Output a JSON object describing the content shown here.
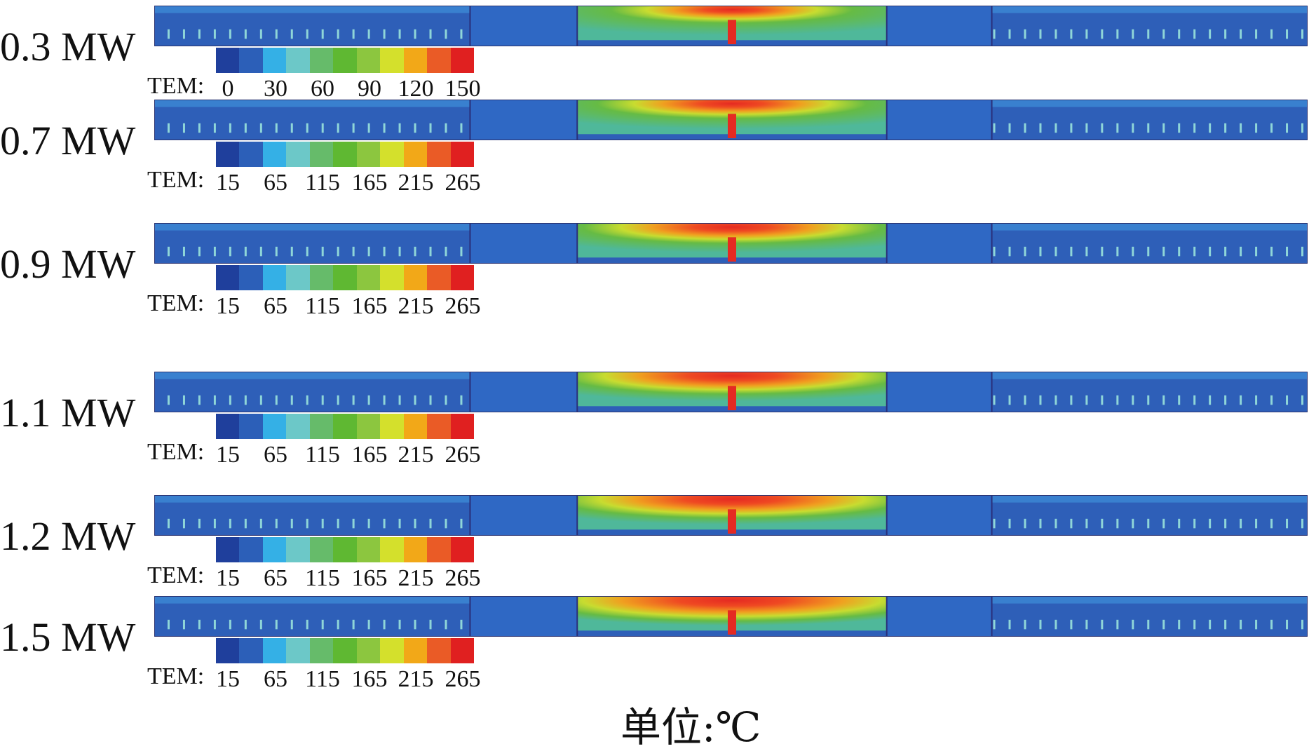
{
  "colors": {
    "scale": [
      "#1f3f9c",
      "#2c5fb8",
      "#34b0e6",
      "#6cc8c8",
      "#66bb6a",
      "#5fb832",
      "#8cc63f",
      "#d4e02c",
      "#f2a818",
      "#ea5b26",
      "#e02020"
    ],
    "background": "#2e5fb8",
    "hot": "#e52a22"
  },
  "unit_label": "单位:℃",
  "panels": [
    {
      "power": "0.3 MW",
      "tem_label": "TEM:",
      "ticks": [
        "0",
        "30",
        "60",
        "90",
        "120",
        "150"
      ],
      "fire_extent": 0.45
    },
    {
      "power": "0.7 MW",
      "tem_label": "TEM:",
      "ticks": [
        "15",
        "65",
        "115",
        "165",
        "215",
        "265"
      ],
      "fire_extent": 0.55
    },
    {
      "power": "0.9 MW",
      "tem_label": "TEM:",
      "ticks": [
        "15",
        "65",
        "115",
        "165",
        "215",
        "265"
      ],
      "fire_extent": 0.65
    },
    {
      "power": "1.1 MW",
      "tem_label": "TEM:",
      "ticks": [
        "15",
        "65",
        "115",
        "165",
        "215",
        "265"
      ],
      "fire_extent": 0.78
    },
    {
      "power": "1.2 MW",
      "tem_label": "TEM:",
      "ticks": [
        "15",
        "65",
        "115",
        "165",
        "215",
        "265"
      ],
      "fire_extent": 0.82
    },
    {
      "power": "1.5 MW",
      "tem_label": "TEM:",
      "ticks": [
        "15",
        "65",
        "115",
        "165",
        "215",
        "265"
      ],
      "fire_extent": 0.95
    }
  ]
}
